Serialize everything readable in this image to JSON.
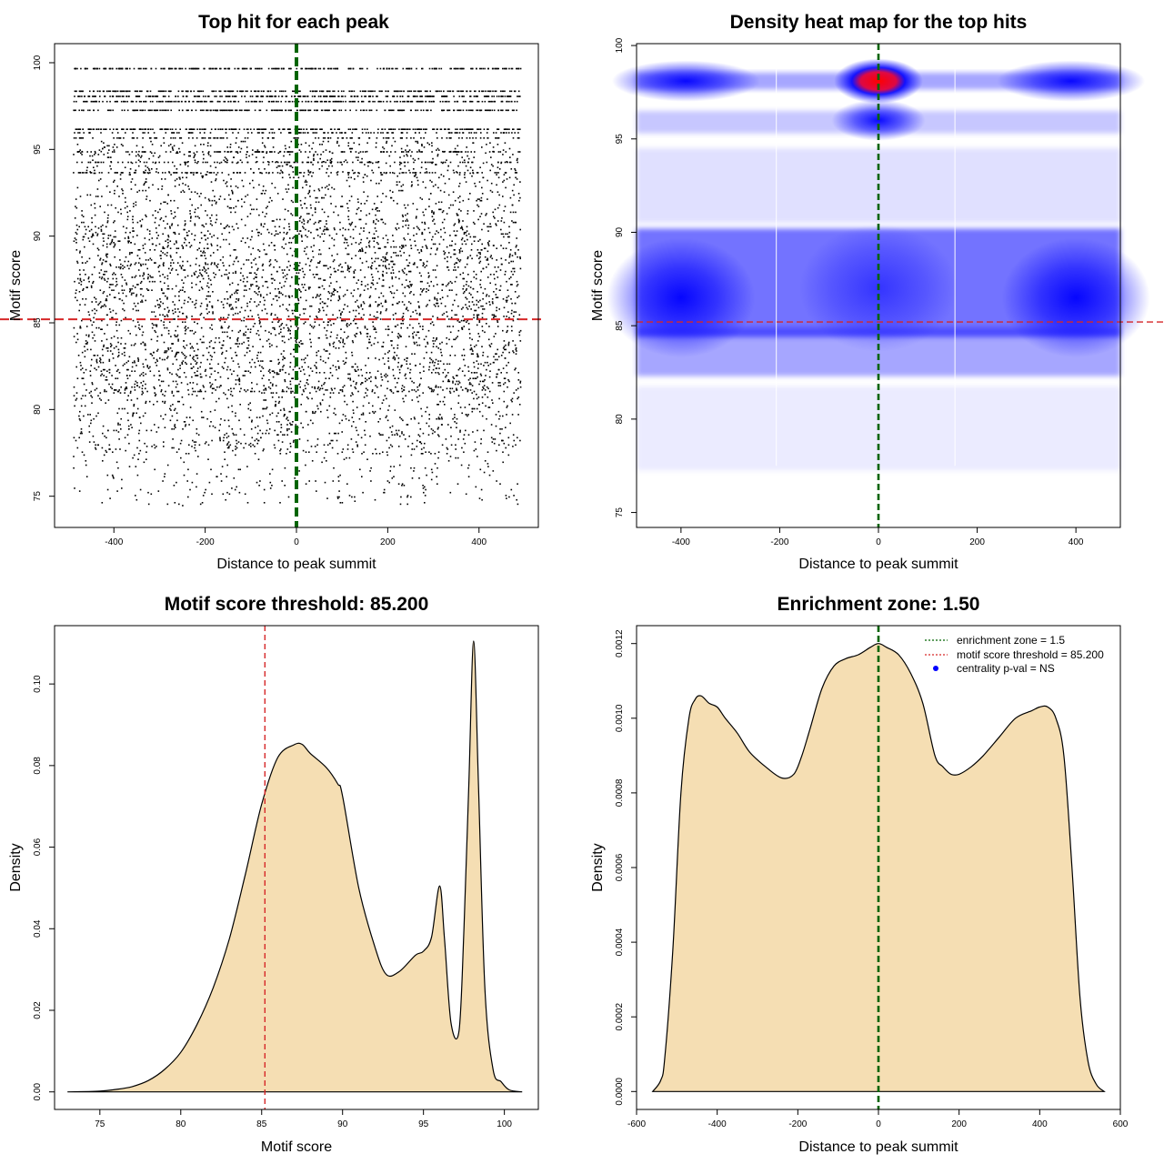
{
  "chart_data": [
    {
      "type": "scatter",
      "title": "Top hit for each peak",
      "xlabel": "Distance to peak summit",
      "ylabel": "Motif score",
      "xlim": [
        -530,
        530
      ],
      "ylim": [
        73.2,
        101.1
      ],
      "xticks": [
        "-400",
        "-200",
        "0",
        "200",
        "400"
      ],
      "xtick_values": [
        -400,
        -200,
        0,
        200,
        400
      ],
      "yticks": [
        "75",
        "80",
        "85",
        "90",
        "95",
        "100"
      ],
      "ytick_values": [
        75,
        80,
        85,
        90,
        95,
        100
      ],
      "vline": {
        "x": 0,
        "color": "#006400"
      },
      "hline": {
        "y": 85.2,
        "color": "#d62728"
      },
      "point_cloud": {
        "x_range": [
          -490,
          490
        ],
        "dense_band": [
          81,
          91
        ],
        "discrete_score_bands": [
          99.7,
          98.4,
          98.1,
          97.8,
          97.3,
          96.2,
          96.0,
          95.7,
          94.9,
          94.3,
          93.7
        ]
      }
    },
    {
      "type": "heatmap",
      "title": "Density heat map for the top hits",
      "xlabel": "Distance to peak summit",
      "ylabel": "Motif score",
      "xlim": [
        -490,
        490
      ],
      "ylim": [
        74.2,
        100.1
      ],
      "xticks": [
        "-400",
        "-200",
        "0",
        "200",
        "400"
      ],
      "xtick_values": [
        -400,
        -200,
        0,
        200,
        400
      ],
      "yticks": [
        "75",
        "80",
        "85",
        "90",
        "95",
        "100"
      ],
      "ytick_values": [
        75,
        80,
        85,
        90,
        95,
        100
      ],
      "vline": {
        "x": 0,
        "color": "#006400"
      },
      "hline": {
        "y": 85.2,
        "color": "#d62728"
      },
      "density_peaks": [
        {
          "x": 0,
          "y": 98.1,
          "level": "high"
        },
        {
          "x": 0,
          "y": 96.0,
          "level": "medium"
        },
        {
          "x": -390,
          "y": 98.1,
          "level": "medium"
        },
        {
          "x": 390,
          "y": 98.1,
          "level": "medium"
        },
        {
          "x": -400,
          "y": 86.5,
          "level": "medium"
        },
        {
          "x": 400,
          "y": 86.5,
          "level": "medium"
        },
        {
          "x": 0,
          "y": 87.0,
          "level": "low"
        }
      ],
      "colors": [
        "#ffffff",
        "#0000ff",
        "#ff0000"
      ]
    },
    {
      "type": "area",
      "title": "Motif score threshold: 85.200",
      "xlabel": "Motif score",
      "ylabel": "Density",
      "xlim": [
        72.2,
        102.1
      ],
      "ylim": [
        -0.0043,
        0.1143
      ],
      "xticks": [
        "75",
        "80",
        "85",
        "90",
        "95",
        "100"
      ],
      "xtick_values": [
        75,
        80,
        85,
        90,
        95,
        100
      ],
      "yticks": [
        "0.00",
        "0.02",
        "0.04",
        "0.06",
        "0.08",
        "0.10"
      ],
      "ytick_values": [
        0,
        0.02,
        0.04,
        0.06,
        0.08,
        0.1
      ],
      "vline": {
        "x": 85.2,
        "color": "#d62728"
      },
      "fill": "#f5deb3",
      "x": [
        73,
        75,
        76,
        77,
        78,
        79,
        80,
        81,
        82,
        83,
        84,
        85,
        86,
        87,
        87.5,
        88,
        89,
        89.7,
        90,
        91,
        92,
        92.7,
        93.5,
        94.5,
        95,
        95.5,
        96,
        96.3,
        96.7,
        97.2,
        97.5,
        97.8,
        98.1,
        98.4,
        98.8,
        99.3,
        99.8,
        100.3,
        101.1
      ],
      "y": [
        0,
        0.0002,
        0.0006,
        0.0013,
        0.0028,
        0.0055,
        0.0097,
        0.0165,
        0.0255,
        0.0375,
        0.0535,
        0.0705,
        0.082,
        0.0851,
        0.0852,
        0.083,
        0.0795,
        0.0755,
        0.0725,
        0.05,
        0.0355,
        0.0288,
        0.0295,
        0.0335,
        0.0345,
        0.038,
        0.0505,
        0.0375,
        0.017,
        0.015,
        0.04,
        0.075,
        0.1105,
        0.075,
        0.025,
        0.0055,
        0.0025,
        0.0005,
        0
      ]
    },
    {
      "type": "area",
      "title": "Enrichment zone: 1.50",
      "xlabel": "Distance to peak summit",
      "ylabel": "Density",
      "xlim": [
        -600,
        600
      ],
      "ylim": [
        -4.8e-05,
        0.001248
      ],
      "xticks": [
        "-600",
        "-400",
        "-200",
        "0",
        "200",
        "400",
        "600"
      ],
      "xtick_values": [
        -600,
        -400,
        -200,
        0,
        200,
        400,
        600
      ],
      "yticks": [
        "0.0000",
        "0.0002",
        "0.0004",
        "0.0006",
        "0.0008",
        "0.0010",
        "0.0012"
      ],
      "ytick_values": [
        0,
        0.0002,
        0.0004,
        0.0006,
        0.0008,
        0.001,
        0.0012
      ],
      "vline": {
        "x": 0,
        "color": "#006400"
      },
      "fill": "#f5deb3",
      "x": [
        -560,
        -540,
        -530,
        -510,
        -490,
        -470,
        -455,
        -440,
        -420,
        -400,
        -380,
        -350,
        -320,
        -280,
        -240,
        -210,
        -190,
        -170,
        -140,
        -110,
        -80,
        -50,
        -20,
        0,
        20,
        50,
        80,
        110,
        140,
        160,
        180,
        200,
        230,
        260,
        300,
        340,
        380,
        400,
        420,
        440,
        460,
        480,
        500,
        520,
        540,
        560
      ],
      "y": [
        0,
        3e-05,
        9e-05,
        0.00038,
        0.0008,
        0.001,
        0.00105,
        0.00106,
        0.00104,
        0.00103,
        0.001,
        0.00096,
        0.00091,
        0.00087,
        0.00084,
        0.00085,
        0.0009,
        0.00097,
        0.00108,
        0.00114,
        0.00116,
        0.00117,
        0.00119,
        0.0012,
        0.00119,
        0.00117,
        0.00112,
        0.00104,
        0.0009,
        0.00087,
        0.00085,
        0.00085,
        0.00087,
        0.0009,
        0.00095,
        0.001,
        0.00102,
        0.00103,
        0.00103,
        0.001,
        0.0009,
        0.0006,
        0.00025,
        8e-05,
        2e-05,
        0
      ],
      "legend": [
        {
          "label": "enrichment zone = 1.5",
          "type": "dotted-line",
          "color": "#006400"
        },
        {
          "label": "motif score threshold = 85.200",
          "type": "dotted-line",
          "color": "#d62728"
        },
        {
          "label": "centrality p-val = NS",
          "type": "point",
          "color": "#0000ff"
        }
      ]
    }
  ]
}
